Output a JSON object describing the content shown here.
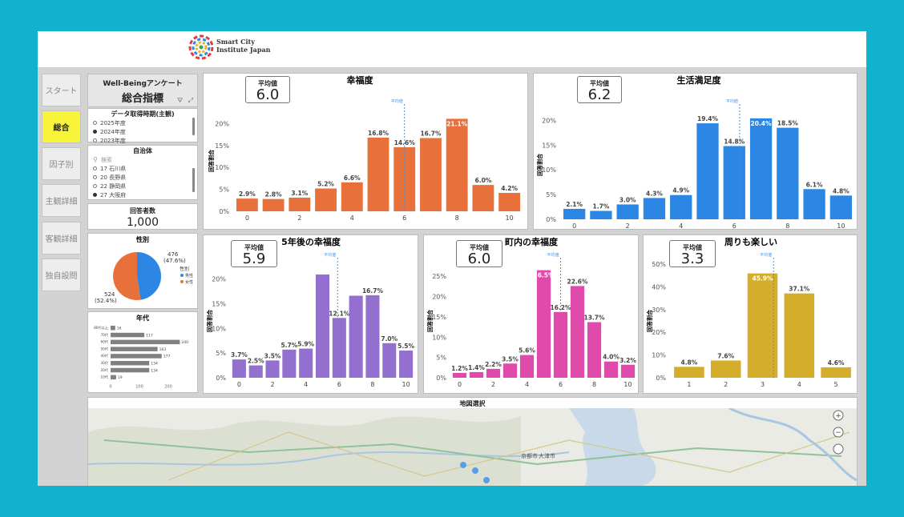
{
  "header": {
    "logo_line1": "Smart City",
    "logo_line2": "Institute Japan"
  },
  "nav": {
    "items": [
      {
        "label": "スタート",
        "active": false
      },
      {
        "label": "総合",
        "active": true
      },
      {
        "label": "因子別",
        "active": false
      },
      {
        "label": "主観詳細",
        "active": false
      },
      {
        "label": "客観詳細",
        "active": false
      },
      {
        "label": "独自設問",
        "active": false
      }
    ]
  },
  "titlebox": {
    "line1": "Well-Beingアンケート",
    "line2": "総合指標"
  },
  "period_slicer": {
    "title": "データ取得時期(主観)",
    "options": [
      {
        "label": "2025年度",
        "selected": false
      },
      {
        "label": "2024年度",
        "selected": true
      },
      {
        "label": "2023年度",
        "selected": false
      }
    ]
  },
  "muni_slicer": {
    "title": "自治体",
    "search_placeholder": "検索",
    "options": [
      {
        "label": "17 石川県",
        "selected": false
      },
      {
        "label": "20 長野県",
        "selected": false
      },
      {
        "label": "22 静岡県",
        "selected": false
      },
      {
        "label": "27 大阪府",
        "selected": true
      }
    ]
  },
  "respondents": {
    "title": "回答者数",
    "value": "1,000"
  },
  "gender": {
    "title": "性別",
    "legend_title": "性別",
    "male_label": "男性",
    "female_label": "女性",
    "male_value_label": "476",
    "male_pct_label": "(47.6%)",
    "female_value_label": "524",
    "female_pct_label": "(52.4%)",
    "male_color": "#2b86e4",
    "female_color": "#e8703a"
  },
  "age": {
    "title": "年代",
    "bar_color": "#808080"
  },
  "map": {
    "title": "地図選択",
    "zoom_in": "+",
    "zoom_out": "−",
    "labels": [
      "京都市",
      "大津市"
    ]
  },
  "colors": {
    "c1": "#e8703a",
    "c2": "#2b86e4",
    "c3": "#9370cf",
    "c4": "#e04aaa",
    "c5": "#d4ae2a"
  },
  "avg_label": "平均値",
  "chart_data": [
    {
      "id": "c1",
      "type": "bar",
      "title": "幸福度",
      "ylabel": "回答割合",
      "avg": "6.0",
      "mean": 6.0,
      "ylim": [
        0,
        23
      ],
      "x": [
        0,
        1,
        2,
        3,
        4,
        5,
        6,
        7,
        8,
        9,
        10
      ],
      "values": [
        2.9,
        2.8,
        3.1,
        5.2,
        6.6,
        16.8,
        14.6,
        16.7,
        21.1,
        6.0,
        4.2
      ],
      "labels": [
        "2.9%",
        "2.8%",
        "3.1%",
        "5.2%",
        "6.6%",
        "16.8%",
        "14.6%",
        "16.7%",
        "21.1%",
        "6.0%",
        "4.2%"
      ],
      "yticks": [
        "0%",
        "5%",
        "10%",
        "15%",
        "20%"
      ],
      "xticks": [
        "0",
        "2",
        "4",
        "6",
        "8",
        "10"
      ],
      "mean_label": "平均値"
    },
    {
      "id": "c2",
      "type": "bar",
      "title": "生活満足度",
      "ylabel": "回答割合",
      "avg": "6.2",
      "mean": 6.2,
      "ylim": [
        0,
        22
      ],
      "x": [
        0,
        1,
        2,
        3,
        4,
        5,
        6,
        7,
        8,
        9,
        10
      ],
      "values": [
        2.1,
        1.7,
        3.0,
        4.3,
        4.9,
        19.4,
        14.8,
        20.4,
        18.5,
        6.1,
        4.8
      ],
      "labels": [
        "2.1%",
        "1.7%",
        "3.0%",
        "4.3%",
        "4.9%",
        "19.4%",
        "14.8%",
        "20.4%",
        "18.5%",
        "6.1%",
        "4.8%"
      ],
      "yticks": [
        "0%",
        "5%",
        "10%",
        "15%",
        "20%"
      ],
      "xticks": [
        "0",
        "2",
        "4",
        "6",
        "8",
        "10"
      ],
      "mean_label": "平均値"
    },
    {
      "id": "c3",
      "type": "bar",
      "title": "5年後の幸福度",
      "ylabel": "回答割合",
      "avg": "5.9",
      "mean": 5.9,
      "ylim": [
        0,
        23
      ],
      "x": [
        0,
        1,
        2,
        3,
        4,
        5,
        6,
        7,
        8,
        9,
        10
      ],
      "values": [
        3.7,
        2.5,
        3.5,
        5.7,
        5.9,
        20.9,
        12.1,
        16.6,
        16.7,
        7.0,
        5.5
      ],
      "labels": [
        "3.7%",
        "2.5%",
        "3.5%",
        "5.7%",
        "5.9%",
        "",
        "12.1%",
        "",
        "16.7%",
        "7.0%",
        "5.5%"
      ],
      "yticks": [
        "0%",
        "5%",
        "10%",
        "15%",
        "20%"
      ],
      "xticks": [
        "0",
        "2",
        "4",
        "6",
        "8",
        "10"
      ],
      "mean_label": "平均値"
    },
    {
      "id": "c4",
      "type": "bar",
      "title": "町内の幸福度",
      "ylabel": "回答割合",
      "avg": "6.0",
      "mean": 6.0,
      "ylim": [
        0,
        28
      ],
      "x": [
        0,
        1,
        2,
        3,
        4,
        5,
        6,
        7,
        8,
        9,
        10
      ],
      "values": [
        1.2,
        1.4,
        2.2,
        3.5,
        5.6,
        26.5,
        16.2,
        22.6,
        13.7,
        4.0,
        3.2
      ],
      "labels": [
        "1.2%",
        "1.4%",
        "2.2%",
        "3.5%",
        "5.6%",
        "26.5%",
        "16.2%",
        "22.6%",
        "13.7%",
        "4.0%",
        "3.2%"
      ],
      "yticks": [
        "0%",
        "5%",
        "10%",
        "15%",
        "20%",
        "25%"
      ],
      "xticks": [
        "0",
        "2",
        "4",
        "6",
        "8",
        "10"
      ],
      "mean_label": "平均値"
    },
    {
      "id": "c5",
      "type": "bar",
      "title": "周りも楽しい",
      "ylabel": "回答割合",
      "avg": "3.3",
      "mean": 3.3,
      "ylim": [
        0,
        50
      ],
      "x": [
        1,
        2,
        3,
        4,
        5
      ],
      "values": [
        4.8,
        7.6,
        45.9,
        37.1,
        4.6
      ],
      "labels": [
        "4.8%",
        "7.6%",
        "45.9%",
        "37.1%",
        "4.6%"
      ],
      "yticks": [
        "0%",
        "10%",
        "20%",
        "30%",
        "40%",
        "50%"
      ],
      "xticks": [
        "1",
        "2",
        "3",
        "4",
        "5"
      ],
      "mean_label": "平均値"
    },
    {
      "id": "gender_pie",
      "type": "pie",
      "title": "性別",
      "categories": [
        "男性",
        "女性"
      ],
      "values": [
        476,
        524
      ]
    },
    {
      "id": "age_bars",
      "type": "bar",
      "title": "年代",
      "categories": [
        "80代以上",
        "70代",
        "60代",
        "50代",
        "40代",
        "30代",
        "20代",
        "10代"
      ],
      "values": [
        16,
        117,
        240,
        163,
        177,
        134,
        134,
        19
      ],
      "labels": [
        "16",
        "117",
        "240",
        "163",
        "177",
        "134",
        "134",
        "19"
      ],
      "xticks": [
        "0",
        "100",
        "200"
      ],
      "xlim": [
        0,
        250
      ]
    }
  ]
}
